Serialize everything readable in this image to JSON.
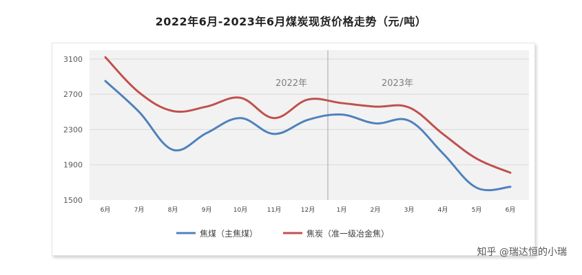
{
  "chart_data": {
    "type": "line",
    "title": "2022年6月-2023年6月煤炭现货价格走势（元/吨）",
    "categories": [
      "6月",
      "7月",
      "8月",
      "9月",
      "10月",
      "11月",
      "12月",
      "1月",
      "2月",
      "3月",
      "4月",
      "5月",
      "6月"
    ],
    "period_labels": [
      "2022年",
      "2023年"
    ],
    "yticks": [
      "3100",
      "2700",
      "2300",
      "1900",
      "1500"
    ],
    "ylim": [
      1500,
      3200
    ],
    "grid": true,
    "legend_position": "bottom",
    "series": [
      {
        "name": "焦煤（主焦煤）",
        "color": "#4f81bd",
        "values": [
          2850,
          2500,
          2070,
          2260,
          2430,
          2250,
          2410,
          2470,
          2370,
          2400,
          2030,
          1640,
          1650
        ]
      },
      {
        "name": "焦炭（准一级冶金焦）",
        "color": "#c0504d",
        "values": [
          3120,
          2720,
          2510,
          2560,
          2660,
          2430,
          2640,
          2600,
          2560,
          2550,
          2250,
          1970,
          1810
        ]
      }
    ]
  },
  "watermark": "知乎 @瑞达恒的小瑞"
}
